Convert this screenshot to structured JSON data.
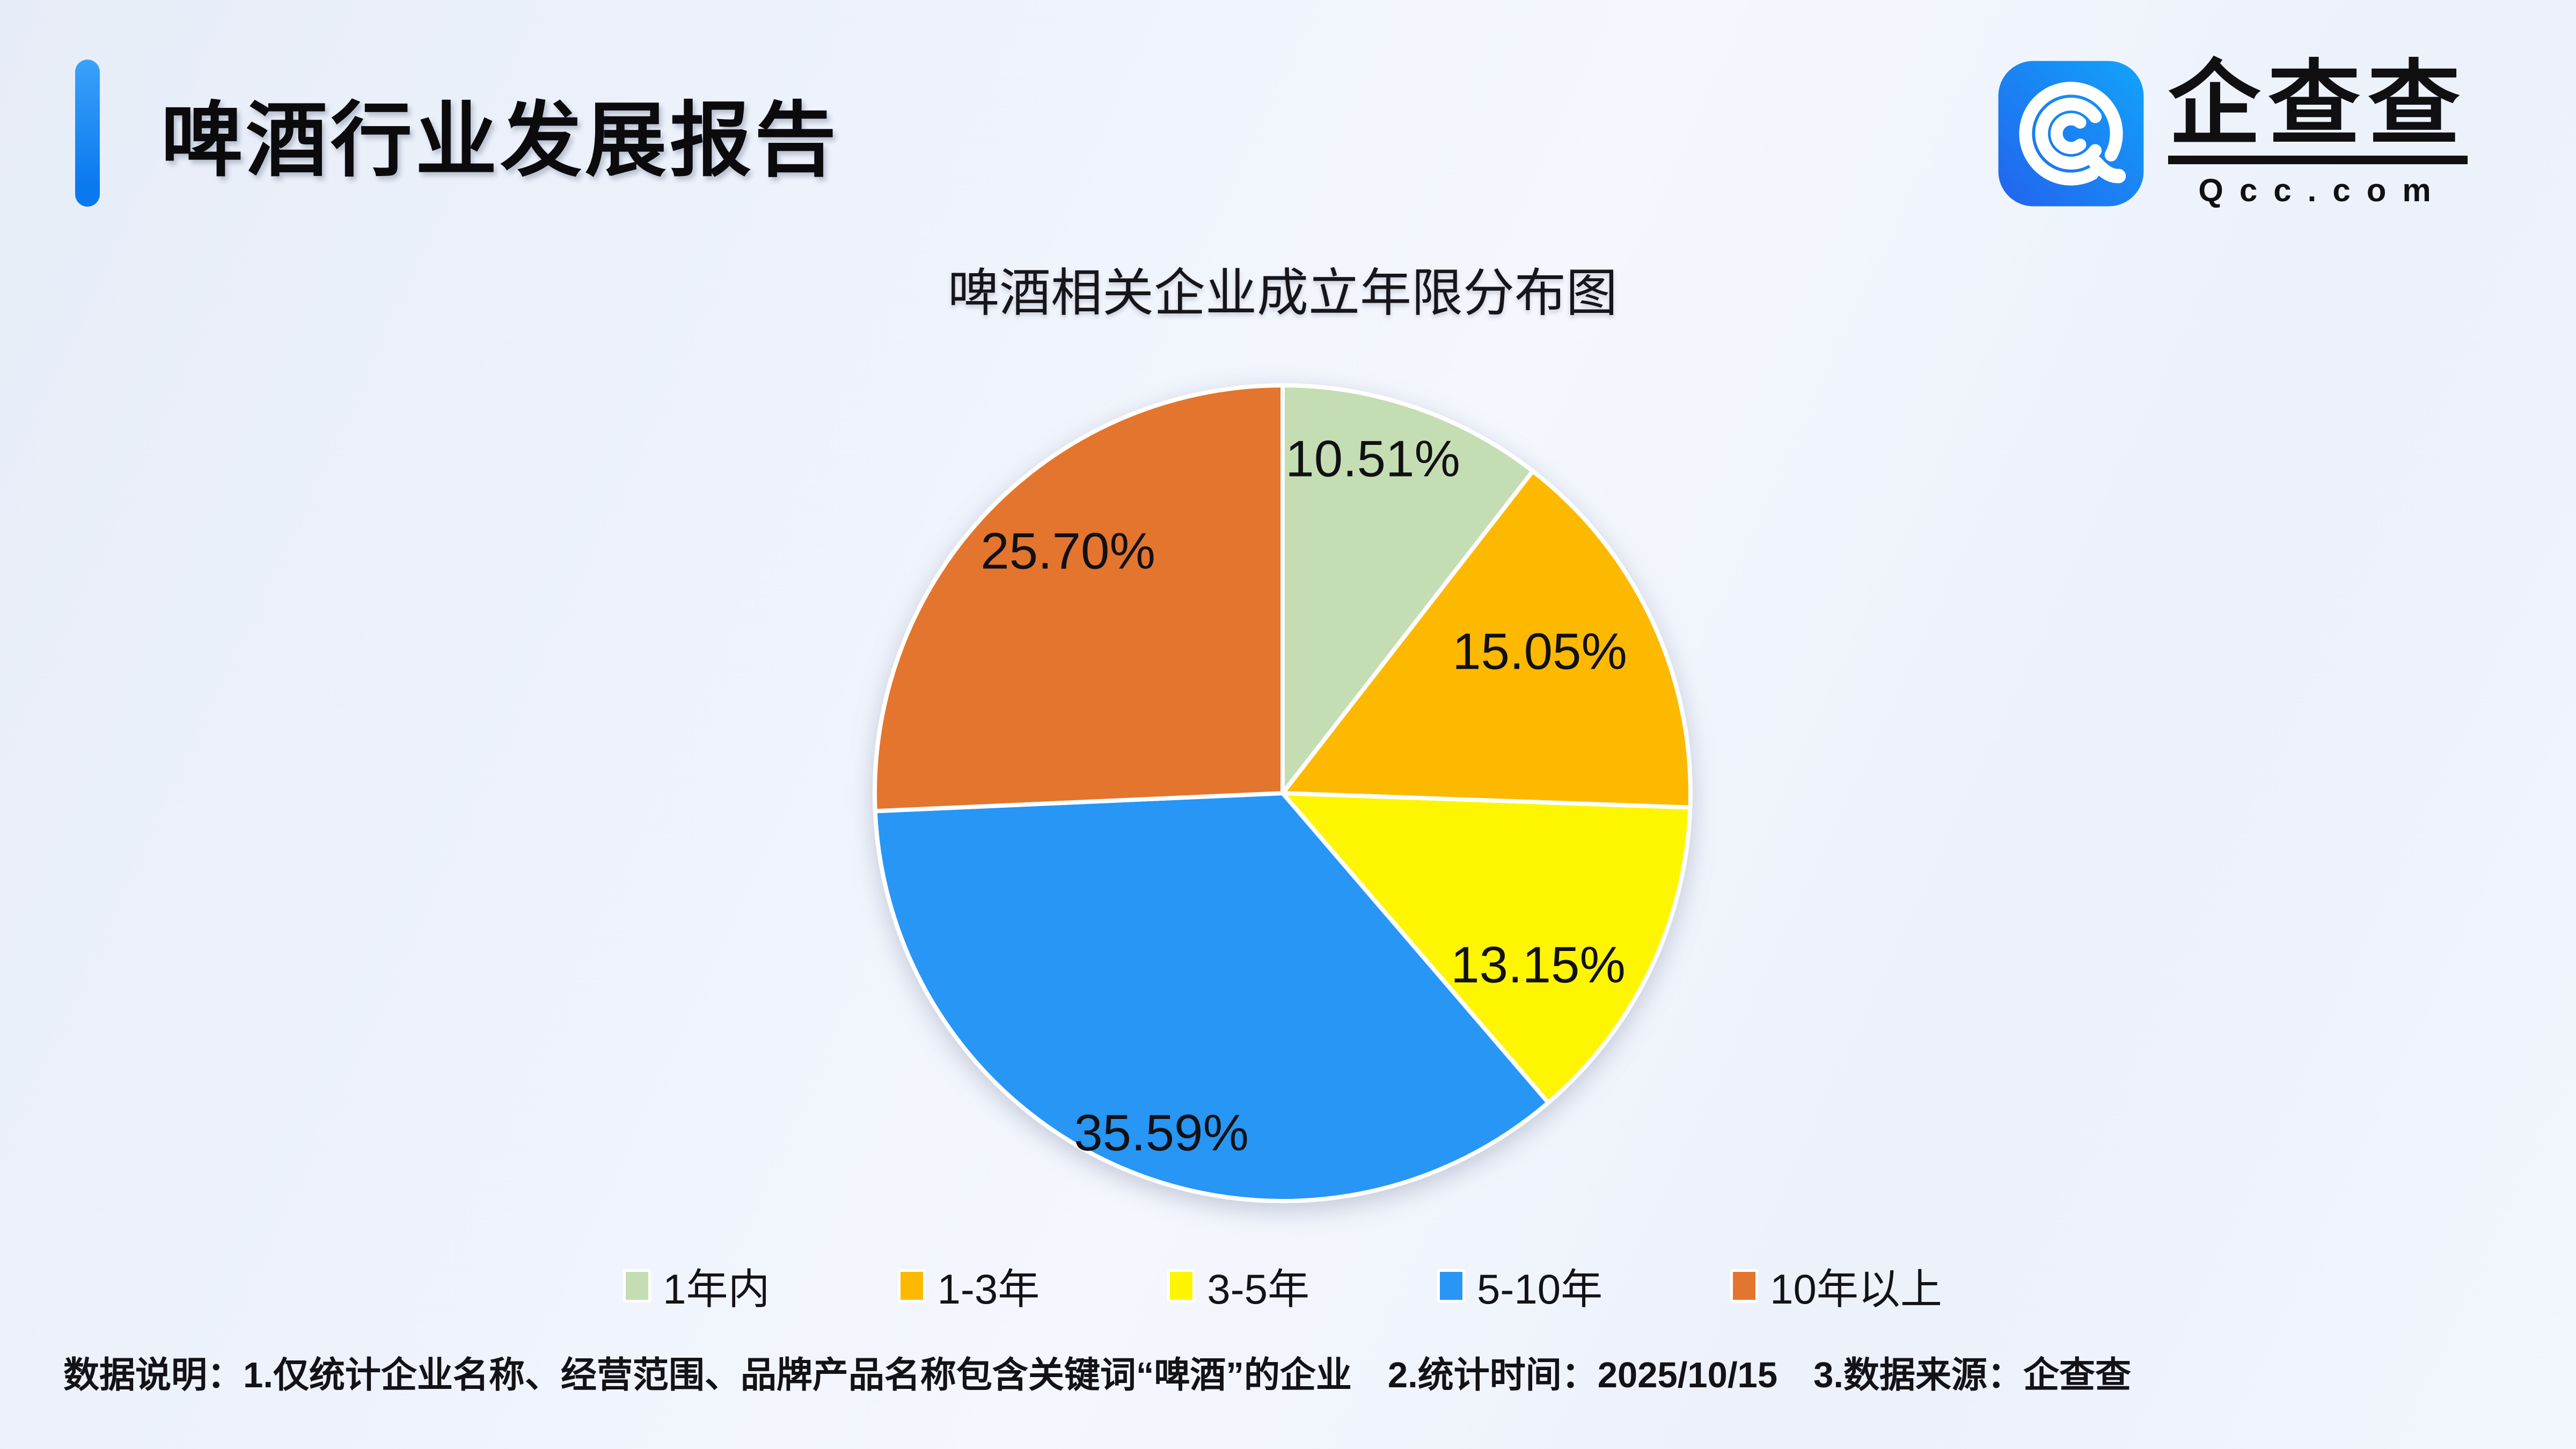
{
  "header": {
    "title": "啤酒行业发展报告",
    "accent_color": "#0d80f2"
  },
  "logo": {
    "brand": "企查查",
    "domain": "Qcc.com",
    "icon": "qcc-magnifier-icon",
    "icon_gradient": [
      "#2264ee",
      "#12a3f9"
    ]
  },
  "chart_data": {
    "type": "pie",
    "title": "啤酒相关企业成立年限分布图",
    "categories": [
      "1年内",
      "1-3年",
      "3-5年",
      "5-10年",
      "10年以上"
    ],
    "values": [
      10.51,
      15.05,
      13.15,
      35.59,
      25.7
    ],
    "unit": "%",
    "start_angle": "top",
    "direction": "clockwise",
    "legend_position": "bottom",
    "slices": [
      {
        "label": "1年内",
        "value": 10.51,
        "display": "10.51%",
        "color": "#c5ddb3"
      },
      {
        "label": "1-3年",
        "value": 15.05,
        "display": "15.05%",
        "color": "#fdb900"
      },
      {
        "label": "3-5年",
        "value": 13.15,
        "display": "13.15%",
        "color": "#fef500"
      },
      {
        "label": "5-10年",
        "value": 35.59,
        "display": "35.59%",
        "color": "#2796f5"
      },
      {
        "label": "10年以上",
        "value": 25.7,
        "display": "25.70%",
        "color": "#e4752e"
      }
    ]
  },
  "footer": {
    "note": "数据说明：1.仅统计企业名称、经营范围、品牌产品名称包含关键词“啤酒”的企业　2.统计时间：2025/10/15　3.数据来源：企查查"
  }
}
